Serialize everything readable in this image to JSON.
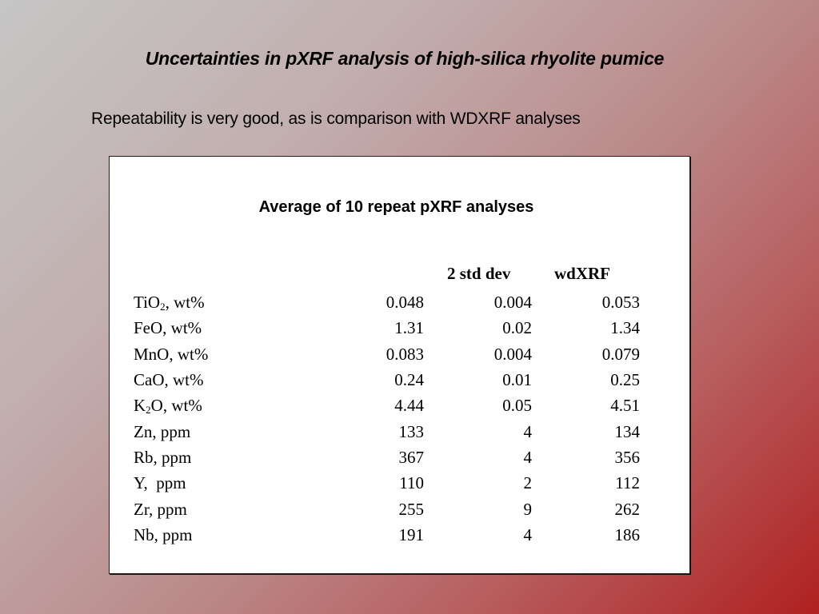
{
  "slide": {
    "title": "Uncertainties in pXRF analysis of high-silica rhyolite pumice",
    "subtitle": "Repeatability is very good, as is comparison with WDXRF analyses"
  },
  "table": {
    "title": "Average of 10 repeat pXRF analyses",
    "columns": {
      "label": "",
      "average": "",
      "std": "2 std dev",
      "wdxrf": "wdXRF"
    },
    "rows": [
      {
        "analyte": "TiO",
        "sub": "2",
        "unit": ", wt%",
        "average": "0.048",
        "std": "0.004",
        "wdxrf": "0.053"
      },
      {
        "analyte": "FeO",
        "sub": "",
        "unit": ", wt%",
        "average": "1.31",
        "std": "0.02",
        "wdxrf": "1.34"
      },
      {
        "analyte": "MnO",
        "sub": "",
        "unit": ", wt%",
        "average": "0.083",
        "std": "0.004",
        "wdxrf": "0.079"
      },
      {
        "analyte": "CaO",
        "sub": "",
        "unit": ", wt%",
        "average": "0.24",
        "std": "0.01",
        "wdxrf": "0.25"
      },
      {
        "analyte": "K",
        "sub": "2",
        "unit": "O, wt%",
        "average": "4.44",
        "std": "0.05",
        "wdxrf": "4.51"
      },
      {
        "analyte": "Zn",
        "sub": "",
        "unit": ", ppm",
        "average": "133",
        "std": "4",
        "wdxrf": "134"
      },
      {
        "analyte": "Rb",
        "sub": "",
        "unit": ", ppm",
        "average": "367",
        "std": "4",
        "wdxrf": "356"
      },
      {
        "analyte": "Y",
        "sub": "",
        "unit": ",  ppm",
        "average": "110",
        "std": "2",
        "wdxrf": "112"
      },
      {
        "analyte": "Zr",
        "sub": "",
        "unit": ", ppm",
        "average": "255",
        "std": "9",
        "wdxrf": "262"
      },
      {
        "analyte": "Nb",
        "sub": "",
        "unit": ", ppm",
        "average": "191",
        "std": "4",
        "wdxrf": "186"
      }
    ]
  },
  "colors": {
    "background_start": "#c6c6c6",
    "background_end": "#b02020",
    "table_background": "#ffffff",
    "text": "#000000"
  }
}
